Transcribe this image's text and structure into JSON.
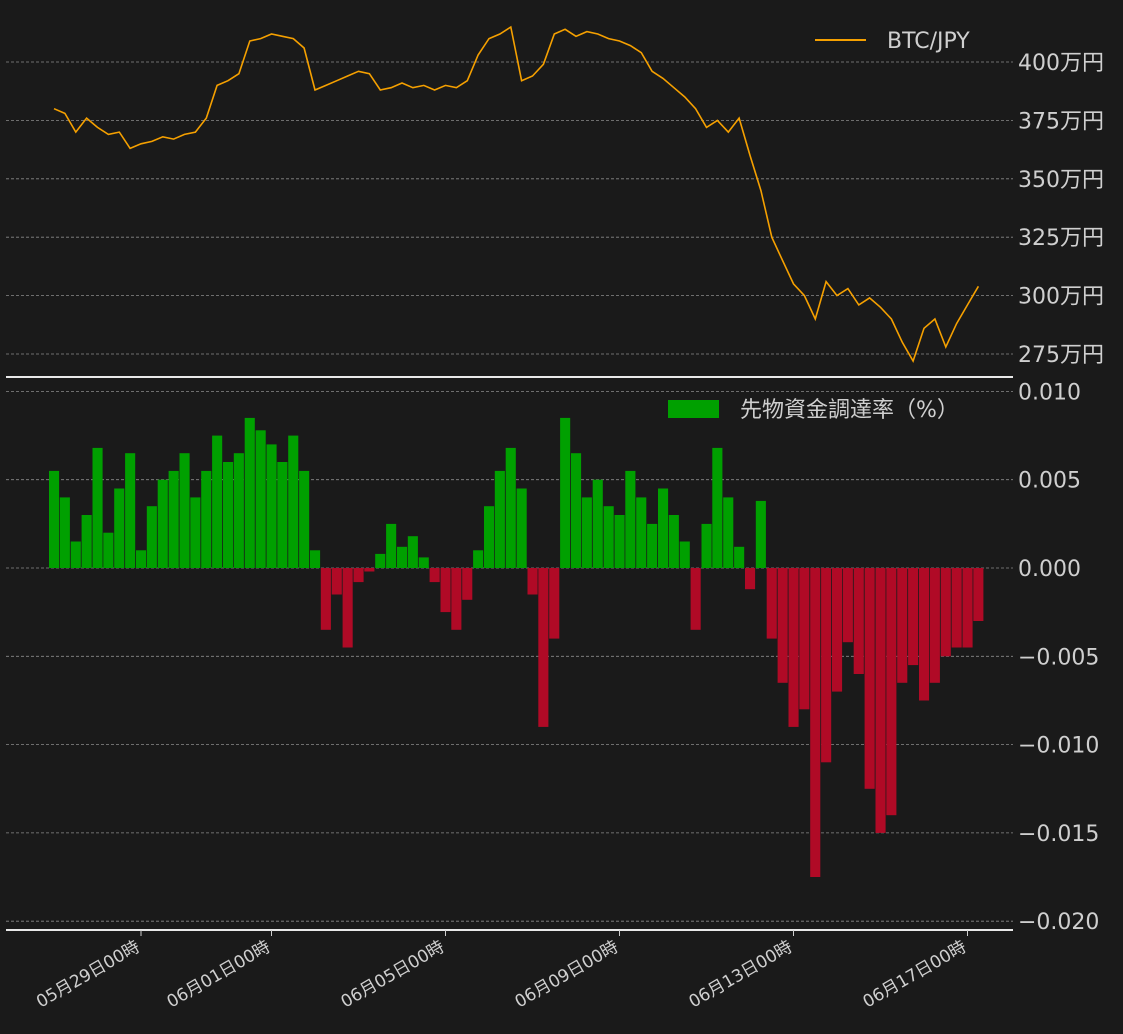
{
  "colors": {
    "background": "#1a1a1a",
    "price_line": "#f5a000",
    "positive_bar": "#00a000",
    "negative_bar": "#b00a26",
    "text": "#cfcfcf",
    "grid": "#8a8a8a"
  },
  "chart_data": [
    {
      "type": "line",
      "panel": "top",
      "legend": "BTC/JPY",
      "legend_position": "top-right",
      "y_axis_side": "right",
      "yticks": [
        2750000,
        3000000,
        3250000,
        3500000,
        3750000,
        4000000
      ],
      "ytick_labels": [
        "275万円",
        "300万円",
        "325万円",
        "350万円",
        "375万円",
        "400万円"
      ],
      "ylim": [
        2700000,
        4180000
      ],
      "grid": true,
      "x_unit": "days since 05月27日00時 (sampled every 6 hours)",
      "series": [
        {
          "name": "BTC/JPY",
          "x": [
            0,
            0.25,
            0.5,
            0.75,
            1,
            1.25,
            1.5,
            1.75,
            2,
            2.25,
            2.5,
            2.75,
            3,
            3.25,
            3.5,
            3.75,
            4,
            4.25,
            4.5,
            4.75,
            5,
            5.25,
            5.5,
            5.75,
            6,
            6.25,
            6.5,
            6.75,
            7,
            7.25,
            7.5,
            7.75,
            8,
            8.25,
            8.5,
            8.75,
            9,
            9.25,
            9.5,
            9.75,
            10,
            10.25,
            10.5,
            10.75,
            11,
            11.25,
            11.5,
            11.75,
            12,
            12.25,
            12.5,
            12.75,
            13,
            13.25,
            13.5,
            13.75,
            14,
            14.25,
            14.5,
            14.75,
            15,
            15.25,
            15.5,
            15.75,
            16,
            16.25,
            16.5,
            16.75,
            17,
            17.25,
            17.5,
            17.75,
            18,
            18.25,
            18.5,
            18.75,
            19,
            19.25,
            19.5,
            19.75,
            20,
            20.25,
            20.5,
            20.75,
            21,
            21.25
          ],
          "values": [
            3800000,
            3780000,
            3700000,
            3760000,
            3720000,
            3690000,
            3700000,
            3630000,
            3650000,
            3660000,
            3680000,
            3670000,
            3690000,
            3700000,
            3760000,
            3900000,
            3920000,
            3950000,
            4090000,
            4100000,
            4120000,
            4110000,
            4100000,
            4060000,
            3880000,
            3900000,
            3920000,
            3940000,
            3960000,
            3950000,
            3880000,
            3890000,
            3910000,
            3890000,
            3900000,
            3880000,
            3900000,
            3890000,
            3920000,
            4030000,
            4100000,
            4120000,
            4150000,
            3920000,
            3940000,
            3990000,
            4120000,
            4140000,
            4110000,
            4130000,
            4120000,
            4100000,
            4090000,
            4070000,
            4040000,
            3960000,
            3930000,
            3890000,
            3850000,
            3800000,
            3720000,
            3750000,
            3700000,
            3760000,
            3600000,
            3450000,
            3250000,
            3150000,
            3050000,
            3000000,
            2900000,
            3060000,
            3000000,
            3030000,
            2960000,
            2990000,
            2950000,
            2900000,
            2800000,
            2720000,
            2860000,
            2900000,
            2780000,
            2880000,
            2960000,
            3040000
          ]
        }
      ]
    },
    {
      "type": "bar",
      "panel": "bottom",
      "legend": "先物資金調達率（%）",
      "legend_position": "top-right",
      "y_axis_side": "right",
      "yticks": [
        -0.02,
        -0.015,
        -0.01,
        -0.005,
        0.0,
        0.005,
        0.01
      ],
      "ytick_labels": [
        "−0.020",
        "−0.015",
        "−0.010",
        "−0.005",
        "0.000",
        "0.005",
        "0.010"
      ],
      "ylim": [
        -0.0205,
        0.0102
      ],
      "grid": true,
      "x_unit": "days since 05月27日00時 (sampled every 6 hours)",
      "x": [
        0,
        0.25,
        0.5,
        0.75,
        1,
        1.25,
        1.5,
        1.75,
        2,
        2.25,
        2.5,
        2.75,
        3,
        3.25,
        3.5,
        3.75,
        4,
        4.25,
        4.5,
        4.75,
        5,
        5.25,
        5.5,
        5.75,
        6,
        6.25,
        6.5,
        6.75,
        7,
        7.25,
        7.5,
        7.75,
        8,
        8.25,
        8.5,
        8.75,
        9,
        9.25,
        9.5,
        9.75,
        10,
        10.25,
        10.5,
        10.75,
        11,
        11.25,
        11.5,
        11.75,
        12,
        12.25,
        12.5,
        12.75,
        13,
        13.25,
        13.5,
        13.75,
        14,
        14.25,
        14.5,
        14.75,
        15,
        15.25,
        15.5,
        15.75,
        16,
        16.25,
        16.5,
        16.75,
        17,
        17.25,
        17.5,
        17.75,
        18,
        18.25,
        18.5,
        18.75,
        19,
        19.25,
        19.5,
        19.75,
        20,
        20.25,
        20.5,
        20.75,
        21,
        21.25
      ],
      "values": [
        0.0055,
        0.004,
        0.0015,
        0.003,
        0.0068,
        0.002,
        0.0045,
        0.0065,
        0.001,
        0.0035,
        0.005,
        0.0055,
        0.0065,
        0.004,
        0.0055,
        0.0075,
        0.006,
        0.0065,
        0.0085,
        0.0078,
        0.007,
        0.006,
        0.0075,
        0.0055,
        0.001,
        -0.0035,
        -0.0015,
        -0.0045,
        -0.0008,
        -0.0002,
        0.0008,
        0.0025,
        0.0012,
        0.0018,
        0.0006,
        -0.0008,
        -0.0025,
        -0.0035,
        -0.0018,
        0.001,
        0.0035,
        0.0055,
        0.0068,
        0.0045,
        -0.0015,
        -0.009,
        -0.004,
        0.0085,
        0.0065,
        0.004,
        0.005,
        0.0035,
        0.003,
        0.0055,
        0.004,
        0.0025,
        0.0045,
        0.003,
        0.0015,
        -0.0035,
        0.0025,
        0.0068,
        0.004,
        0.0012,
        -0.0012,
        0.0038,
        -0.004,
        -0.0065,
        -0.009,
        -0.008,
        -0.0175,
        -0.011,
        -0.007,
        -0.0042,
        -0.006,
        -0.0125,
        -0.015,
        -0.014,
        -0.0065,
        -0.0055,
        -0.0075,
        -0.0065,
        -0.005,
        -0.0045,
        -0.0045,
        -0.003
      ]
    }
  ],
  "x_axis": {
    "tick_positions": [
      2,
      5,
      9,
      13,
      17,
      21
    ],
    "tick_labels": [
      "05月29日00時",
      "06月01日00時",
      "06月05日00時",
      "06月09日00時",
      "06月13日00時",
      "06月17日00時"
    ]
  }
}
